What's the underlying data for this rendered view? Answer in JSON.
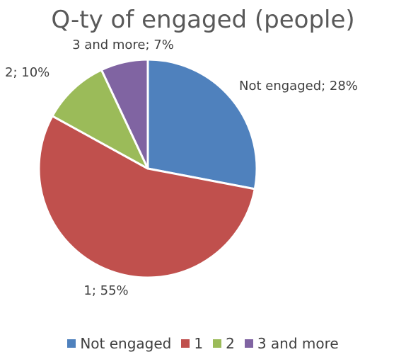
{
  "chart_data": {
    "type": "pie",
    "title": "Q-ty of engaged (people)",
    "categories": [
      "Not engaged",
      "1",
      "2",
      "3 and more"
    ],
    "values": [
      28,
      55,
      10,
      7
    ],
    "unit": "%",
    "data_labels": [
      "Not engaged; 28%",
      "1; 55%",
      "2; 10%",
      "3 and more; 7%"
    ],
    "colors": [
      "#4F81BD",
      "#C0504D",
      "#9BBB59",
      "#8064A2"
    ],
    "legend_position": "bottom",
    "start_angle_deg": 0,
    "direction": "clockwise"
  },
  "legend": {
    "items": [
      {
        "label": "Not engaged",
        "color": "#4F81BD"
      },
      {
        "label": "1",
        "color": "#C0504D"
      },
      {
        "label": "2",
        "color": "#9BBB59"
      },
      {
        "label": "3 and more",
        "color": "#8064A2"
      }
    ]
  }
}
